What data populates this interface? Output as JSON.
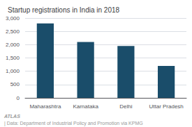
{
  "chart_data": {
    "type": "bar",
    "title": "Startup registrations in India in 2018",
    "categories": [
      "Maharashtra",
      "Karnataka",
      "Delhi",
      "Uttar Pradesh"
    ],
    "values": [
      2800,
      2100,
      1950,
      1200
    ],
    "color": "#1a4d6a",
    "ylim": [
      0,
      3000
    ],
    "yticks": [
      0,
      500,
      {
        "value": 1000,
        "label": "1,000"
      },
      {
        "value": 1500,
        "label": "1,500"
      },
      {
        "value": 2000,
        "label": "2,000"
      },
      {
        "value": 2500,
        "label": "2,500"
      },
      {
        "value": 3000,
        "label": "3,000"
      }
    ],
    "grid": true,
    "annotations": [
      "ATLAS",
      "| Data: Department of Industrial Policy and Promotion via KPMG"
    ]
  }
}
